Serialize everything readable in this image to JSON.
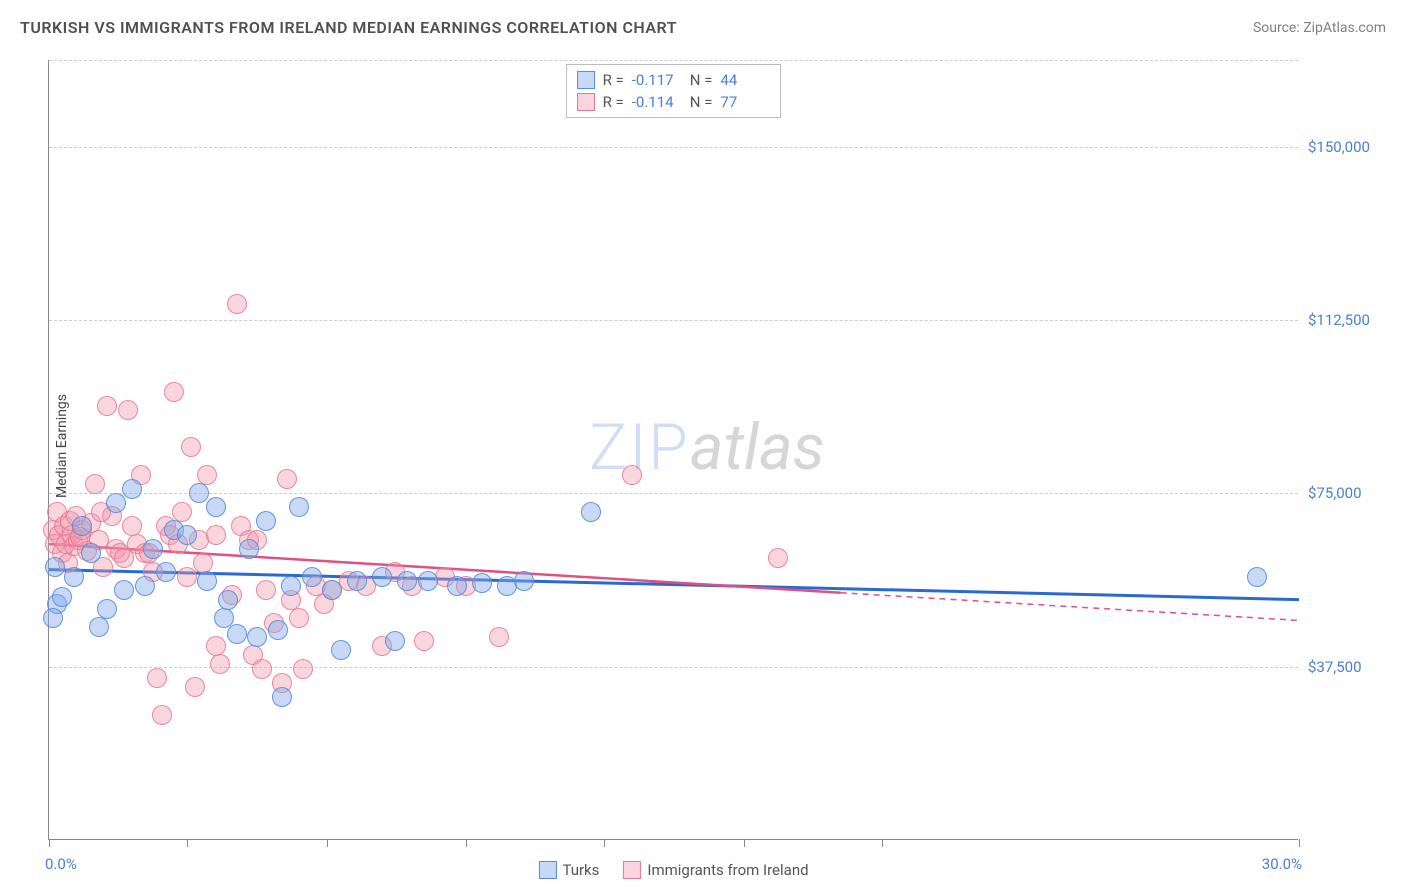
{
  "title": "TURKISH VS IMMIGRANTS FROM IRELAND MEDIAN EARNINGS CORRELATION CHART",
  "source": "Source: ZipAtlas.com",
  "watermark": {
    "zip": "ZIP",
    "atlas": "atlas"
  },
  "chart": {
    "type": "scatter",
    "xlim": [
      0,
      30
    ],
    "ylim": [
      0,
      168750
    ],
    "x_label_start": "0.0%",
    "x_label_end": "30.0%",
    "y_label": "Median Earnings",
    "y_ticks": [
      {
        "v": 37500,
        "label": "$37,500"
      },
      {
        "v": 75000,
        "label": "$75,000"
      },
      {
        "v": 112500,
        "label": "$112,500"
      },
      {
        "v": 150000,
        "label": "$150,000"
      }
    ],
    "x_ticks": [
      0,
      3.3,
      6.67,
      10,
      13.33,
      16.67,
      20,
      30
    ],
    "grid_dashed_top": 168750,
    "background_color": "#ffffff",
    "grid_color": "#cccccc",
    "series": {
      "turks": {
        "label": "Turks",
        "color_fill": "rgba(130,170,230,0.45)",
        "color_stroke": "#5a8cdc",
        "marker_radius": 10,
        "r_label": "R =",
        "r_value": "-0.117",
        "n_label": "N =",
        "n_value": "44",
        "trend": {
          "x1": 0,
          "y1": 58500,
          "x2": 30,
          "y2": 52000,
          "color": "#2a6ad0",
          "width": 3
        },
        "points": [
          [
            0.2,
            51000
          ],
          [
            0.1,
            48000
          ],
          [
            0.3,
            52500
          ],
          [
            0.6,
            57000
          ],
          [
            0.8,
            68000
          ],
          [
            1.0,
            62000
          ],
          [
            1.2,
            46000
          ],
          [
            1.4,
            50000
          ],
          [
            1.6,
            73000
          ],
          [
            1.8,
            54000
          ],
          [
            2.0,
            76000
          ],
          [
            2.3,
            55000
          ],
          [
            2.5,
            63000
          ],
          [
            2.8,
            58000
          ],
          [
            3.0,
            67000
          ],
          [
            3.3,
            66000
          ],
          [
            3.6,
            75000
          ],
          [
            3.8,
            56000
          ],
          [
            4.0,
            72000
          ],
          [
            4.2,
            48000
          ],
          [
            4.3,
            52000
          ],
          [
            4.5,
            44500
          ],
          [
            4.8,
            63000
          ],
          [
            5.0,
            44000
          ],
          [
            5.2,
            69000
          ],
          [
            5.5,
            45500
          ],
          [
            5.6,
            31000
          ],
          [
            5.8,
            55000
          ],
          [
            6.0,
            72000
          ],
          [
            6.3,
            57000
          ],
          [
            6.8,
            54000
          ],
          [
            7.0,
            41000
          ],
          [
            7.4,
            56000
          ],
          [
            8.0,
            57000
          ],
          [
            8.3,
            43000
          ],
          [
            8.6,
            56000
          ],
          [
            9.1,
            56000
          ],
          [
            9.8,
            55000
          ],
          [
            10.4,
            55500
          ],
          [
            11.0,
            55000
          ],
          [
            11.4,
            56000
          ],
          [
            13.0,
            71000
          ],
          [
            29.0,
            57000
          ],
          [
            0.15,
            59000
          ]
        ]
      },
      "ireland": {
        "label": "Immigants from Ireland",
        "label_correct": "Immigrants from Ireland",
        "color_fill": "rgba(240,150,170,0.40)",
        "color_stroke": "#e67896",
        "marker_radius": 10,
        "r_label": "R =",
        "r_value": "-0.114",
        "n_label": "N =",
        "n_value": "77",
        "trend": {
          "x1": 0,
          "y1": 64000,
          "x2_solid": 19,
          "y2_solid": 53500,
          "x2": 30,
          "y2": 47500,
          "color": "#e05080",
          "width": 2.5
        },
        "points": [
          [
            0.1,
            67000
          ],
          [
            0.15,
            64000
          ],
          [
            0.2,
            71000
          ],
          [
            0.25,
            66000
          ],
          [
            0.3,
            62000
          ],
          [
            0.35,
            68000
          ],
          [
            0.4,
            64000
          ],
          [
            0.45,
            60000
          ],
          [
            0.5,
            69000
          ],
          [
            0.55,
            66000
          ],
          [
            0.6,
            63500
          ],
          [
            0.7,
            65000
          ],
          [
            0.8,
            67000
          ],
          [
            0.9,
            62500
          ],
          [
            1.0,
            68500
          ],
          [
            1.1,
            77000
          ],
          [
            1.2,
            65000
          ],
          [
            1.3,
            59000
          ],
          [
            1.4,
            94000
          ],
          [
            1.5,
            70000
          ],
          [
            1.6,
            63000
          ],
          [
            1.7,
            62000
          ],
          [
            1.9,
            93000
          ],
          [
            2.0,
            68000
          ],
          [
            2.1,
            64000
          ],
          [
            2.2,
            79000
          ],
          [
            2.3,
            62000
          ],
          [
            2.5,
            58000
          ],
          [
            2.6,
            35000
          ],
          [
            2.8,
            68000
          ],
          [
            2.9,
            66000
          ],
          [
            3.0,
            97000
          ],
          [
            3.1,
            64000
          ],
          [
            3.2,
            71000
          ],
          [
            3.3,
            57000
          ],
          [
            3.4,
            85000
          ],
          [
            3.5,
            33000
          ],
          [
            3.6,
            65000
          ],
          [
            3.8,
            79000
          ],
          [
            4.0,
            66000
          ],
          [
            4.0,
            42000
          ],
          [
            4.1,
            38000
          ],
          [
            4.4,
            53000
          ],
          [
            4.5,
            116000
          ],
          [
            4.6,
            68000
          ],
          [
            4.8,
            65000
          ],
          [
            4.9,
            40000
          ],
          [
            5.0,
            65000
          ],
          [
            5.1,
            37000
          ],
          [
            5.2,
            54000
          ],
          [
            5.4,
            47000
          ],
          [
            5.6,
            34000
          ],
          [
            5.7,
            78000
          ],
          [
            5.8,
            52000
          ],
          [
            6.0,
            48000
          ],
          [
            6.1,
            37000
          ],
          [
            6.4,
            55000
          ],
          [
            6.6,
            51000
          ],
          [
            6.8,
            54000
          ],
          [
            7.2,
            56000
          ],
          [
            7.6,
            55000
          ],
          [
            8.0,
            42000
          ],
          [
            8.3,
            58000
          ],
          [
            8.7,
            55000
          ],
          [
            9.0,
            43000
          ],
          [
            9.5,
            57000
          ],
          [
            10.0,
            55000
          ],
          [
            10.8,
            44000
          ],
          [
            14.0,
            79000
          ],
          [
            17.5,
            61000
          ],
          [
            2.7,
            27000
          ],
          [
            1.8,
            61000
          ],
          [
            2.4,
            62000
          ],
          [
            0.65,
            70000
          ],
          [
            0.75,
            65500
          ],
          [
            1.25,
            71000
          ],
          [
            3.7,
            60000
          ]
        ]
      }
    }
  }
}
